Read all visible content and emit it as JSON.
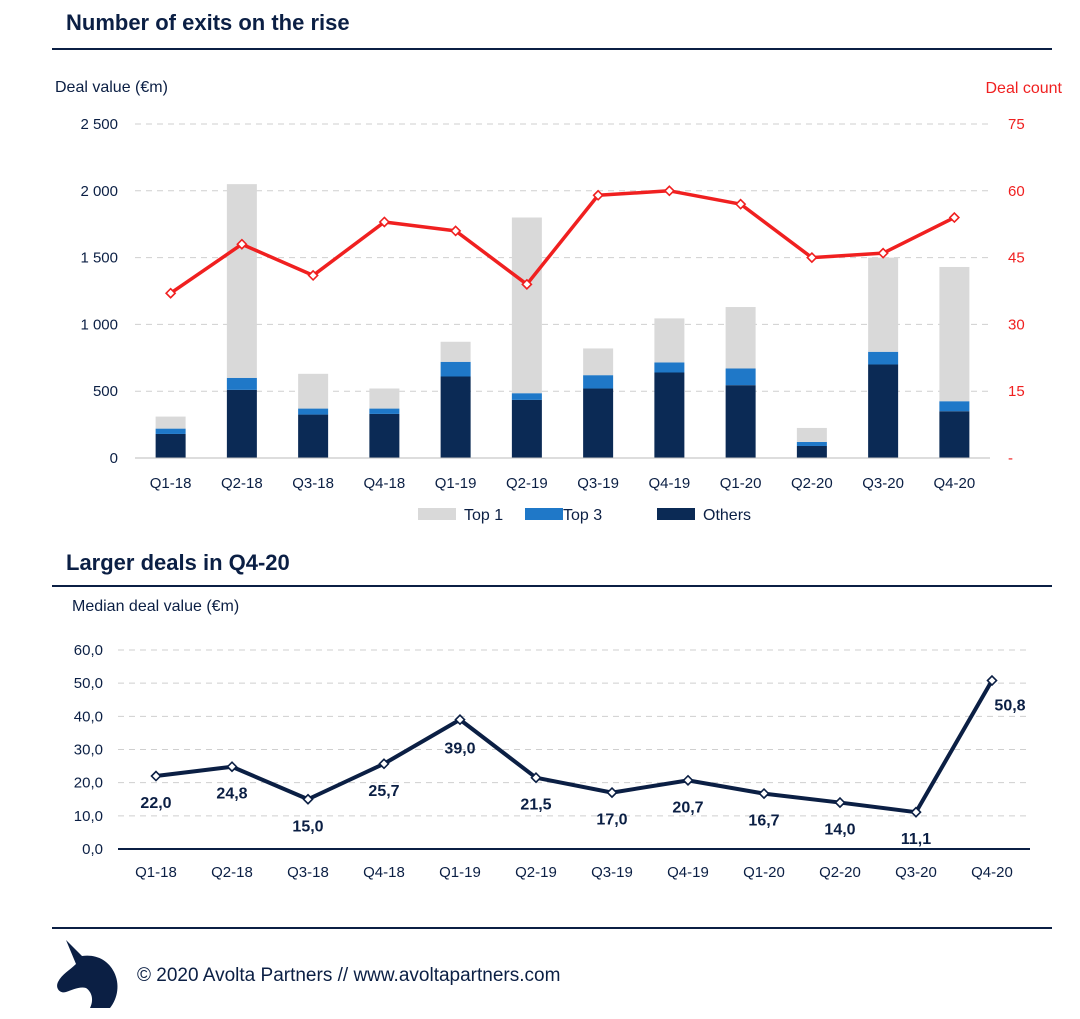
{
  "colors": {
    "navy": "#0b1f44",
    "top1": "#d9d9d9",
    "top3": "#1f78c8",
    "others": "#0b2a55",
    "count": "#f02020"
  },
  "chart_data": [
    {
      "type": "bar",
      "title": "Number of exits on the rise",
      "ylabel": "Deal value (€m)",
      "y2label": "Deal count",
      "stacked": true,
      "categories": [
        "Q1-18",
        "Q2-18",
        "Q3-18",
        "Q4-18",
        "Q1-19",
        "Q2-19",
        "Q3-19",
        "Q4-19",
        "Q1-20",
        "Q2-20",
        "Q3-20",
        "Q4-20"
      ],
      "ylim": [
        0,
        2500
      ],
      "yticks": [
        0,
        500,
        1000,
        1500,
        2000,
        2500
      ],
      "ytick_labels": [
        "0",
        "500",
        "1 000",
        "1 500",
        "2 000",
        "2 500"
      ],
      "y2lim": [
        0,
        75
      ],
      "y2ticks": [
        0,
        15,
        30,
        45,
        60,
        75
      ],
      "y2tick_labels": [
        "-",
        "15",
        "30",
        "45",
        "60",
        "75"
      ],
      "series": [
        {
          "name": "Others",
          "values": [
            180,
            510,
            325,
            330,
            610,
            435,
            520,
            640,
            545,
            90,
            700,
            350
          ]
        },
        {
          "name": "Top 3",
          "values": [
            40,
            90,
            45,
            40,
            110,
            50,
            100,
            75,
            125,
            30,
            95,
            75
          ]
        },
        {
          "name": "Top 1",
          "values": [
            90,
            1450,
            260,
            150,
            150,
            1315,
            200,
            330,
            460,
            105,
            705,
            1005
          ]
        }
      ],
      "line": {
        "name": "Deal count",
        "axis": "right",
        "values": [
          37,
          48,
          41,
          53,
          51,
          39,
          59,
          60,
          57,
          45,
          46,
          54
        ]
      },
      "legend": [
        "Top 1",
        "Top 3",
        "Others"
      ],
      "legend_position": "bottom",
      "grid": true
    },
    {
      "type": "line",
      "title": "Larger deals in Q4-20",
      "ylabel": "Median deal value (€m)",
      "categories": [
        "Q1-18",
        "Q2-18",
        "Q3-18",
        "Q4-18",
        "Q1-19",
        "Q2-19",
        "Q3-19",
        "Q4-19",
        "Q1-20",
        "Q2-20",
        "Q3-20",
        "Q4-20"
      ],
      "values": [
        22.0,
        24.8,
        15.0,
        25.7,
        39.0,
        21.5,
        17.0,
        20.7,
        16.7,
        14.0,
        11.1,
        50.8
      ],
      "value_labels": [
        "22,0",
        "24,8",
        "15,0",
        "25,7",
        "39,0",
        "21,5",
        "17,0",
        "20,7",
        "16,7",
        "14,0",
        "11,1",
        "50,8"
      ],
      "ylim": [
        0,
        60
      ],
      "yticks": [
        0,
        10,
        20,
        30,
        40,
        50,
        60
      ],
      "ytick_labels": [
        "0,0",
        "10,0",
        "20,0",
        "30,0",
        "40,0",
        "50,0",
        "60,0"
      ],
      "grid": true
    }
  ],
  "footer": {
    "text": "© 2020 Avolta Partners // www.avoltapartners.com",
    "logo": "unicorn-head-icon"
  }
}
